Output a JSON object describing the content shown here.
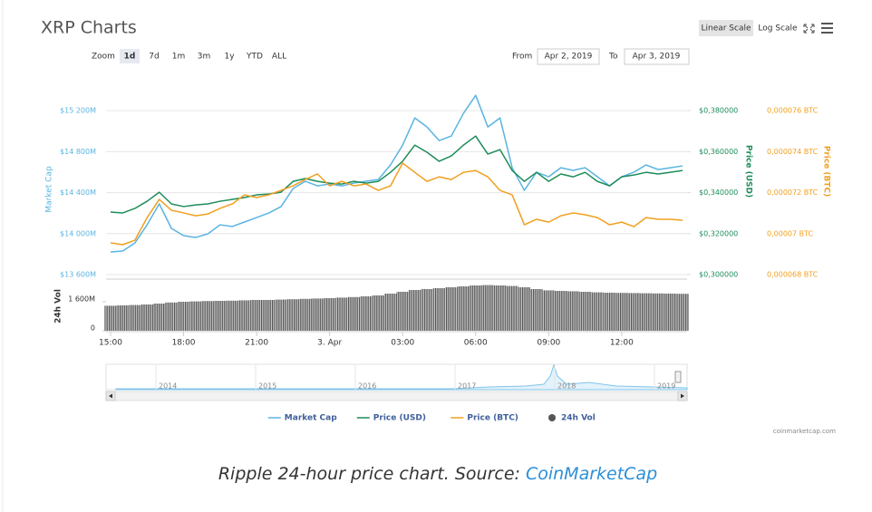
{
  "toolbar": {
    "scale_buttons": [
      "Linear Scale",
      "Log Scale"
    ],
    "zoom_label": "Zoom",
    "zoom_buttons": [
      "1d",
      "7d",
      "1m",
      "3m",
      "1y",
      "YTD",
      "ALL"
    ],
    "from_label": "From",
    "from_date": "Apr 2, 2019",
    "to_label": "To",
    "to_date": "Apr 3, 2019"
  },
  "chart_data": {
    "type": "line",
    "title": "XRP Charts",
    "categories": [
      "15:00",
      null,
      null,
      null,
      null,
      null,
      "18:00",
      null,
      null,
      null,
      null,
      null,
      "21:00",
      null,
      null,
      null,
      null,
      null,
      "3. Apr",
      null,
      null,
      null,
      null,
      null,
      "03:00",
      null,
      null,
      null,
      null,
      null,
      "06:00",
      null,
      null,
      null,
      null,
      null,
      "09:00",
      null,
      null,
      null,
      null,
      null,
      "12:00",
      null,
      null,
      null,
      null,
      null
    ],
    "series": [
      {
        "name": "Market Cap",
        "color": "#5ab4e2",
        "axis": "y",
        "values": [
          13821,
          13830,
          13909,
          14086,
          14290,
          14051,
          13980,
          13962,
          13998,
          14086,
          14069,
          14113,
          14157,
          14201,
          14263,
          14440,
          14511,
          14466,
          14484,
          14466,
          14493,
          14511,
          14528,
          14670,
          14864,
          15129,
          15041,
          14908,
          14953,
          15174,
          15350,
          15041,
          15129,
          14643,
          14422,
          14599,
          14555,
          14643,
          14617,
          14643,
          14555,
          14466,
          14555,
          14599,
          14670,
          14625,
          14643,
          14661
        ]
      },
      {
        "name": "Price (USD)",
        "color": "#1e8c5a",
        "axis": "y2",
        "values": [
          0.3305,
          0.3301,
          0.3323,
          0.3358,
          0.3402,
          0.3345,
          0.3332,
          0.334,
          0.3345,
          0.3358,
          0.3367,
          0.3376,
          0.3389,
          0.3393,
          0.3402,
          0.3455,
          0.3469,
          0.3455,
          0.3446,
          0.3442,
          0.3455,
          0.3446,
          0.3455,
          0.3499,
          0.3553,
          0.3632,
          0.3597,
          0.3553,
          0.3579,
          0.3632,
          0.3676,
          0.3588,
          0.361,
          0.3508,
          0.3455,
          0.3499,
          0.3455,
          0.3491,
          0.3477,
          0.3499,
          0.3455,
          0.3433,
          0.3477,
          0.3486,
          0.3499,
          0.3491,
          0.3499,
          0.3508
        ]
      },
      {
        "name": "Price (BTC)",
        "color": "#f0a020",
        "axis": "y3",
        "values": [
          6.955e-05,
          6.946e-05,
          6.968e-05,
          7.078e-05,
          7.167e-05,
          7.114e-05,
          7.101e-05,
          7.087e-05,
          7.096e-05,
          7.123e-05,
          7.145e-05,
          7.189e-05,
          7.176e-05,
          7.189e-05,
          7.211e-05,
          7.233e-05,
          7.264e-05,
          7.291e-05,
          7.233e-05,
          7.255e-05,
          7.233e-05,
          7.242e-05,
          7.211e-05,
          7.233e-05,
          7.344e-05,
          7.299e-05,
          7.255e-05,
          7.277e-05,
          7.264e-05,
          7.299e-05,
          7.308e-05,
          7.277e-05,
          7.211e-05,
          7.189e-05,
          7.043e-05,
          7.07e-05,
          7.056e-05,
          7.087e-05,
          7.101e-05,
          7.092e-05,
          7.078e-05,
          7.043e-05,
          7.056e-05,
          7.034e-05,
          7.078e-05,
          7.07e-05,
          7.07e-05,
          7.065e-05
        ]
      },
      {
        "name": "24h Vol",
        "color": "#555555",
        "axis": "volume",
        "type": "column",
        "values": [
          1380,
          1400,
          1420,
          1450,
          1500,
          1560,
          1600,
          1620,
          1640,
          1650,
          1660,
          1680,
          1700,
          1700,
          1720,
          1740,
          1760,
          1780,
          1800,
          1830,
          1860,
          1900,
          1950,
          2050,
          2150,
          2250,
          2300,
          2350,
          2400,
          2450,
          2500,
          2520,
          2500,
          2470,
          2400,
          2300,
          2230,
          2200,
          2180,
          2150,
          2120,
          2100,
          2090,
          2080,
          2070,
          2060,
          2050,
          2040
        ]
      }
    ],
    "y_label": "Market Cap",
    "y2_label": "Price (USD)",
    "y3_label": "Price (BTC)",
    "volume_label": "24h Vol",
    "ylim": [
      13600,
      15440
    ],
    "yticks": [
      {
        "value": 13600,
        "label": "$13 600M"
      },
      {
        "value": 14000,
        "label": "$14 000M"
      },
      {
        "value": 14400,
        "label": "$14 400M"
      },
      {
        "value": 14800,
        "label": "$14 800M"
      },
      {
        "value": 15200,
        "label": "$15 200M"
      }
    ],
    "y2lim": [
      0.3,
      0.392
    ],
    "y2ticks": [
      {
        "value": 0.3,
        "label": "$0,300000"
      },
      {
        "value": 0.32,
        "label": "$0,320000"
      },
      {
        "value": 0.34,
        "label": "$0,340000"
      },
      {
        "value": 0.36,
        "label": "$0,360000"
      },
      {
        "value": 0.38,
        "label": "$0,380000"
      }
    ],
    "y3lim": [
      6.8e-05,
      7.72e-05
    ],
    "y3ticks": [
      {
        "value": 6.8e-05,
        "label": "0,000068 BTC"
      },
      {
        "value": 7e-05,
        "label": "0,00007 BTC"
      },
      {
        "value": 7.2e-05,
        "label": "0,000072 BTC"
      },
      {
        "value": 7.4e-05,
        "label": "0,000074 BTC"
      },
      {
        "value": 7.6e-05,
        "label": "0,000076 BTC"
      }
    ],
    "volume_ylim": [
      0,
      2750
    ],
    "volume_yticks": [
      0,
      {
        "value": 1600,
        "label": "1 600M"
      }
    ],
    "grid": true,
    "legend": "bottom"
  },
  "navigator": {
    "labels": [
      "2014",
      "2015",
      "2016",
      "2017",
      "2018",
      "2019"
    ]
  },
  "credit": "coinmarketcap.com",
  "caption": {
    "text": "Ripple 24-hour price chart. Source: ",
    "link": "CoinMarketCap"
  }
}
